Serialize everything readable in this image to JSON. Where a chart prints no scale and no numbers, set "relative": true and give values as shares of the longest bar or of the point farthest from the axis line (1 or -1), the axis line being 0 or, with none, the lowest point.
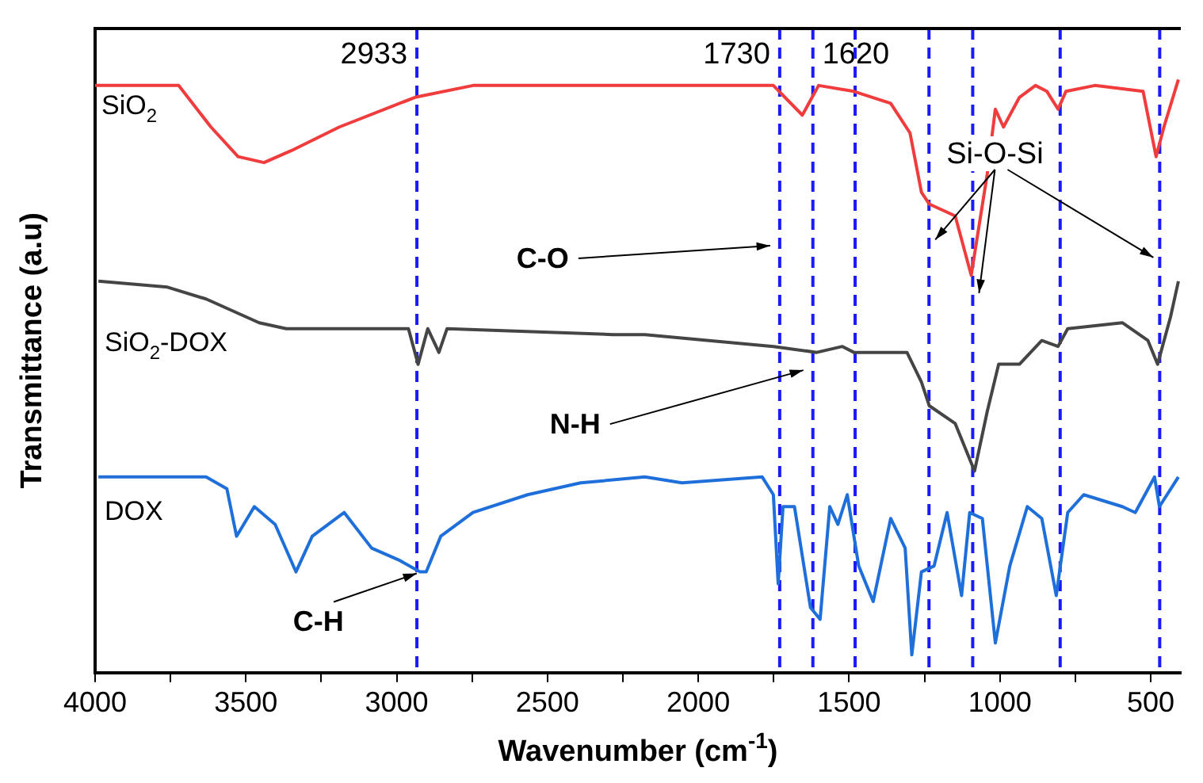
{
  "chart_data": {
    "type": "line",
    "xlabel": "Wavenumber (cm$^{-1}$)",
    "ylabel": "Transmittance (a.u)",
    "relative": true,
    "xlim": [
      4000,
      400
    ],
    "xticks": [
      4000,
      {
        "value": 3750,
        "label": null
      },
      3500,
      {
        "value": 3250,
        "label": null
      },
      3000,
      {
        "value": 2750,
        "label": null
      },
      2500,
      {
        "value": 2250,
        "label": null
      },
      2000,
      {
        "value": 1750,
        "label": null
      },
      1500,
      {
        "value": 1250,
        "label": null
      },
      1000,
      {
        "value": 750,
        "label": null
      },
      500
    ],
    "grid": false,
    "legend": false,
    "marker": "none",
    "line_style": "solid",
    "series": [
      {
        "name": "SiO$_{2}$",
        "color": "#f03c3c",
        "x": [
          4000,
          3723,
          3616,
          3526,
          3440,
          3350,
          3190,
          2939,
          2747,
          1751,
          1655,
          1601,
          1484,
          1362,
          1298,
          1260,
          1234,
          1148,
          1095,
          1042,
          1015,
          988,
          935,
          882,
          844,
          807,
          781,
          685,
          525,
          482,
          456,
          408
        ],
        "values": [
          0.99,
          0.99,
          0.92,
          0.87,
          0.86,
          0.88,
          0.92,
          0.97,
          0.99,
          0.99,
          0.94,
          0.99,
          0.98,
          0.96,
          0.91,
          0.81,
          0.79,
          0.77,
          0.67,
          0.84,
          0.95,
          0.92,
          0.97,
          0.99,
          0.98,
          0.95,
          0.98,
          0.99,
          0.98,
          0.87,
          0.92,
          1.0
        ]
      },
      {
        "name": "SiO$_{2}$-DOX",
        "color": "#454545",
        "x": [
          3989,
          3760,
          3632,
          3456,
          3366,
          2961,
          2929,
          2897,
          2860,
          2833,
          2284,
          2177,
          1751,
          1607,
          1522,
          1484,
          1447,
          1308,
          1260,
          1234,
          1148,
          1084,
          1042,
          1004,
          935,
          861,
          807,
          775,
          594,
          509,
          477,
          434,
          408
        ],
        "values": [
          0.66,
          0.65,
          0.63,
          0.59,
          0.58,
          0.58,
          0.52,
          0.58,
          0.54,
          0.58,
          0.57,
          0.57,
          0.55,
          0.54,
          0.55,
          0.54,
          0.54,
          0.54,
          0.49,
          0.45,
          0.42,
          0.34,
          0.44,
          0.52,
          0.52,
          0.56,
          0.55,
          0.58,
          0.59,
          0.56,
          0.52,
          0.6,
          0.66
        ]
      },
      {
        "name": "DOX",
        "color": "#1e6fd9",
        "x": [
          3989,
          3632,
          3563,
          3531,
          3472,
          3403,
          3334,
          3280,
          3174,
          3083,
          2993,
          2923,
          2902,
          2854,
          2747,
          2566,
          2390,
          2177,
          2054,
          1788,
          1751,
          1735,
          1719,
          1681,
          1628,
          1596,
          1564,
          1537,
          1506,
          1468,
          1420,
          1362,
          1314,
          1292,
          1260,
          1218,
          1175,
          1127,
          1100,
          1058,
          1015,
          967,
          909,
          861,
          813,
          775,
          722,
          594,
          551,
          487,
          471,
          408
        ],
        "values": [
          0.33,
          0.33,
          0.31,
          0.23,
          0.28,
          0.25,
          0.17,
          0.23,
          0.27,
          0.21,
          0.19,
          0.17,
          0.17,
          0.23,
          0.27,
          0.3,
          0.32,
          0.33,
          0.32,
          0.33,
          0.3,
          0.15,
          0.28,
          0.28,
          0.11,
          0.09,
          0.28,
          0.25,
          0.3,
          0.18,
          0.12,
          0.26,
          0.21,
          0.03,
          0.17,
          0.18,
          0.27,
          0.13,
          0.27,
          0.26,
          0.05,
          0.18,
          0.28,
          0.26,
          0.13,
          0.27,
          0.3,
          0.28,
          0.27,
          0.33,
          0.28,
          0.33
        ]
      }
    ],
    "ref_lines": [
      {
        "axis": "x",
        "value": 2933,
        "label": "2933",
        "color": "#1a1aff",
        "line_style": "dashed"
      },
      {
        "axis": "x",
        "value": 1730,
        "label": "1730",
        "color": "#1a1aff",
        "line_style": "dashed"
      },
      {
        "axis": "x",
        "value": 1620,
        "label": "1620",
        "color": "#1a1aff",
        "line_style": "dashed"
      },
      {
        "axis": "x",
        "value": 1480,
        "color": "#1a1aff",
        "line_style": "dashed"
      },
      {
        "axis": "x",
        "value": 1235,
        "color": "#1a1aff",
        "line_style": "dashed"
      },
      {
        "axis": "x",
        "value": 1090,
        "color": "#1a1aff",
        "line_style": "dashed"
      },
      {
        "axis": "x",
        "value": 800,
        "color": "#1a1aff",
        "line_style": "dashed"
      },
      {
        "axis": "x",
        "value": 470,
        "color": "#1a1aff",
        "line_style": "dashed"
      }
    ],
    "annotations": [
      "C-O",
      "N-H",
      {
        "text": "C-H",
        "x": 2923,
        "y": 0.17
      },
      "Si-O-Si"
    ]
  }
}
